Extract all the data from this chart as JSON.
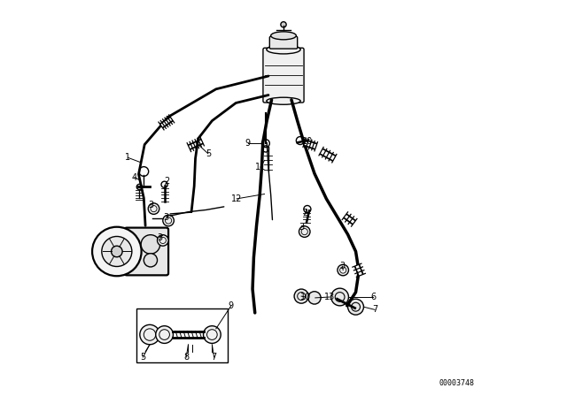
{
  "bg_color": "#ffffff",
  "line_color": "#000000",
  "figure_number": "00003748"
}
